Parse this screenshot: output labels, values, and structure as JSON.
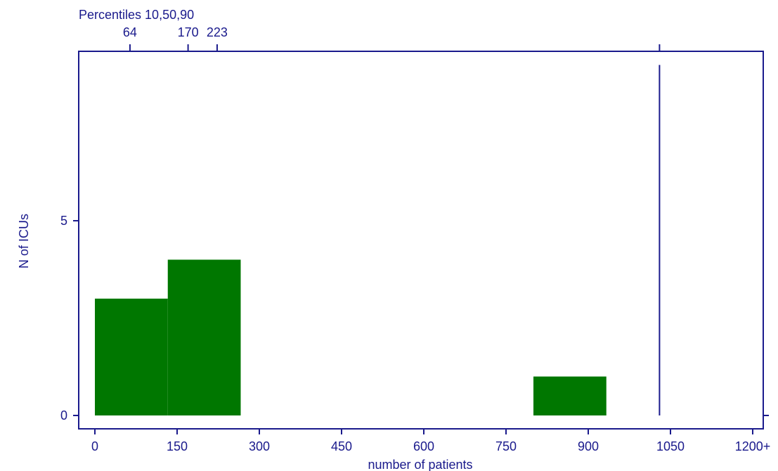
{
  "chart_data": {
    "type": "bar",
    "title": "",
    "xlabel": "number of patients",
    "ylabel": "N of ICUs",
    "xlim": [
      0,
      1200
    ],
    "ylim": [
      0,
      9
    ],
    "x_ticks": [
      0,
      150,
      300,
      450,
      600,
      750,
      900,
      1050,
      1200
    ],
    "x_tick_labels": [
      "0",
      "150",
      "300",
      "450",
      "600",
      "750",
      "900",
      "1050",
      "1200+"
    ],
    "y_ticks": [
      0,
      5
    ],
    "y_tick_labels": [
      "0",
      "5"
    ],
    "bins": [
      {
        "x0": 0,
        "x1": 133,
        "count": 3
      },
      {
        "x0": 133,
        "x1": 266,
        "count": 4
      },
      {
        "x0": 800,
        "x1": 933,
        "count": 1
      }
    ],
    "reference_line": {
      "x": 1030,
      "y_top": 9
    },
    "percentiles": {
      "label": "Percentiles 10,50,90",
      "values": [
        64,
        170,
        223
      ],
      "value_labels": [
        "64",
        "170",
        "223"
      ]
    },
    "grid": false,
    "legend": "none",
    "colors": {
      "bar": "#007700",
      "axis": "#1a1a8c",
      "text": "#1a1a8c"
    }
  }
}
